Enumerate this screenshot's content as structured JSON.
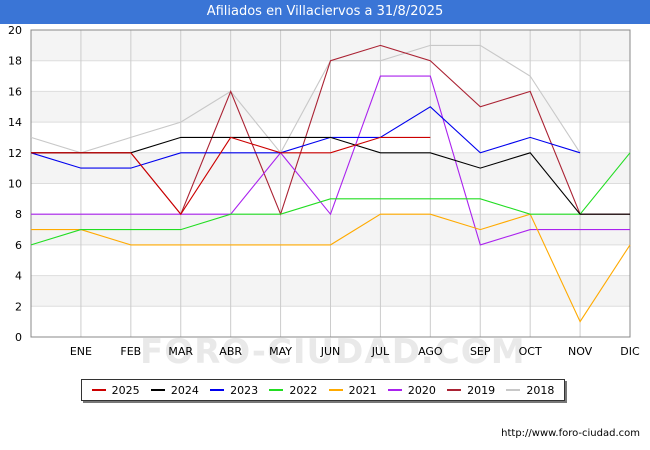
{
  "header": {
    "title": "Afiliados en Villaciervos a 31/8/2025"
  },
  "footer": {
    "url": "http://www.foro-ciudad.com"
  },
  "watermark": "FORO-CIUDAD.COM",
  "chart_data": {
    "type": "line",
    "title": "Afiliados en Villaciervos a 31/8/2025",
    "xlabel": "",
    "ylabel": "",
    "categories": [
      "",
      "ENE",
      "FEB",
      "MAR",
      "ABR",
      "MAY",
      "JUN",
      "JUL",
      "AGO",
      "SEP",
      "OCT",
      "NOV",
      "DIC"
    ],
    "ylim": [
      0,
      20
    ],
    "yticks": [
      0,
      2,
      4,
      6,
      8,
      10,
      12,
      14,
      16,
      18,
      20
    ],
    "grid": true,
    "legend_position": "bottom",
    "series": [
      {
        "name": "2025",
        "color": "#cc0000",
        "values": [
          12,
          12,
          12,
          8,
          13,
          12,
          12,
          13,
          13,
          null,
          null,
          null,
          null
        ]
      },
      {
        "name": "2024",
        "color": "#000000",
        "values": [
          12,
          12,
          12,
          13,
          13,
          13,
          13,
          12,
          12,
          11,
          12,
          8,
          8
        ]
      },
      {
        "name": "2023",
        "color": "#0000ee",
        "values": [
          12,
          11,
          11,
          12,
          12,
          12,
          13,
          13,
          15,
          12,
          13,
          12,
          null
        ]
      },
      {
        "name": "2022",
        "color": "#22dd22",
        "values": [
          6,
          7,
          7,
          7,
          8,
          8,
          9,
          9,
          9,
          9,
          8,
          8,
          12
        ]
      },
      {
        "name": "2021",
        "color": "#ffaa00",
        "values": [
          7,
          7,
          6,
          6,
          6,
          6,
          6,
          8,
          8,
          7,
          8,
          1,
          6
        ]
      },
      {
        "name": "2020",
        "color": "#aa22ee",
        "values": [
          8,
          8,
          8,
          8,
          8,
          12,
          8,
          17,
          17,
          6,
          7,
          7,
          7
        ]
      },
      {
        "name": "2019",
        "color": "#aa2233",
        "values": [
          12,
          12,
          12,
          8,
          16,
          8,
          18,
          19,
          18,
          15,
          16,
          8,
          8
        ]
      },
      {
        "name": "2018",
        "color": "#c8c8c8",
        "values": [
          13,
          12,
          13,
          14,
          16,
          12,
          18,
          18,
          19,
          19,
          17,
          12,
          null
        ]
      }
    ]
  }
}
